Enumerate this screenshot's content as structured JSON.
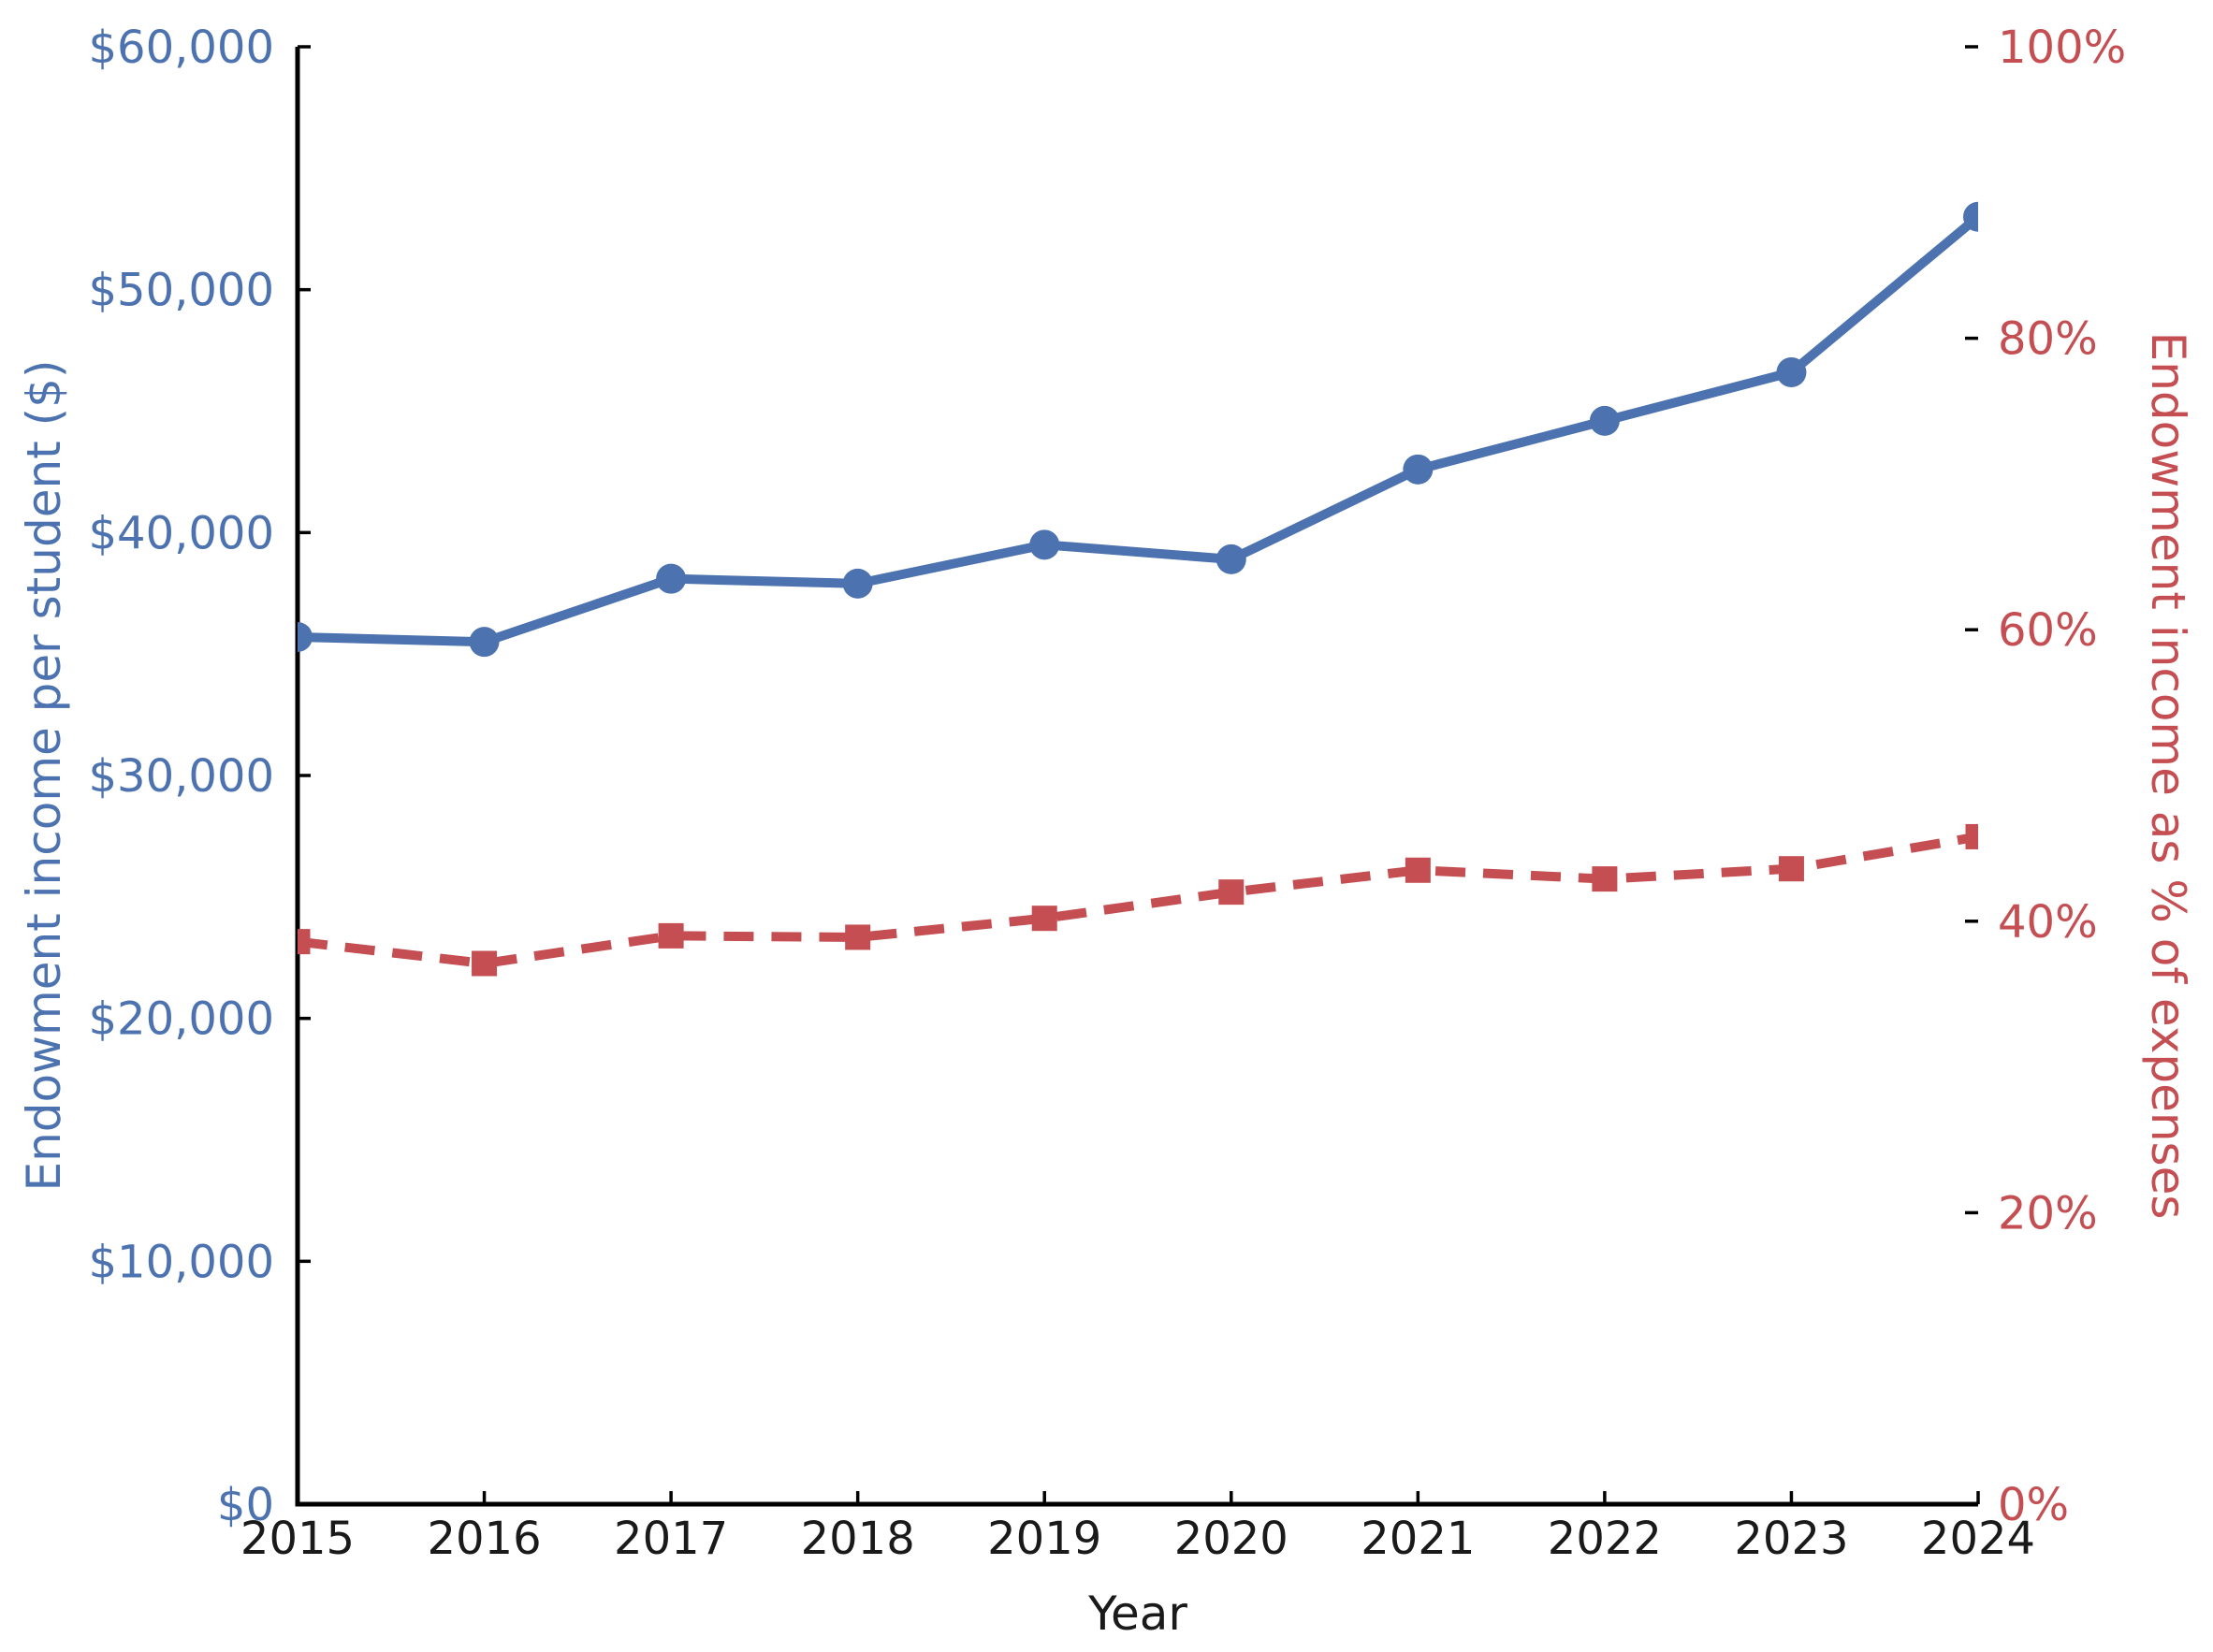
{
  "chart_data": {
    "type": "line",
    "title": "",
    "xlabel": "Year",
    "x": [
      2015,
      2016,
      2017,
      2018,
      2019,
      2020,
      2021,
      2022,
      2023,
      2024
    ],
    "x_tick_labels": [
      "2015",
      "2016",
      "2017",
      "2018",
      "2019",
      "2020",
      "2021",
      "2022",
      "2023",
      "2024"
    ],
    "axes": {
      "left": {
        "label": "Endowment income per student ($)",
        "color": "#4C72B0",
        "lim": [
          0,
          60000
        ],
        "tick_values": [
          0,
          10000,
          20000,
          30000,
          40000,
          50000,
          60000
        ],
        "tick_labels": [
          "$0",
          "$10,000",
          "$20,000",
          "$30,000",
          "$40,000",
          "$50,000",
          "$60,000"
        ]
      },
      "right": {
        "label": "Endowment income as % of expenses",
        "color": "#C44E52",
        "lim": [
          0,
          100
        ],
        "tick_values": [
          0,
          20,
          40,
          60,
          80,
          100
        ],
        "tick_labels": [
          "0%",
          "20%",
          "40%",
          "60%",
          "80%",
          "100%"
        ]
      }
    },
    "series": [
      {
        "name": "Endowment income per student ($)",
        "axis": "left",
        "color": "#4C72B0",
        "line_style": "solid",
        "marker": "circle",
        "values": [
          35700,
          35500,
          38100,
          37900,
          39500,
          38900,
          42600,
          44600,
          46600,
          53000
        ]
      },
      {
        "name": "Endowment income as % of expenses",
        "axis": "right",
        "color": "#C44E52",
        "line_style": "dashed",
        "marker": "square",
        "values": [
          38.6,
          37.1,
          39.0,
          38.9,
          40.2,
          42.0,
          43.5,
          42.9,
          43.6,
          45.8
        ]
      }
    ],
    "grid": false,
    "legend": "none",
    "spines": {
      "left": true,
      "bottom": true,
      "right": false,
      "top": false
    },
    "tick_direction": "in",
    "text_color": "#1a1a1a",
    "spine_color": "#000000",
    "background": "#ffffff"
  }
}
